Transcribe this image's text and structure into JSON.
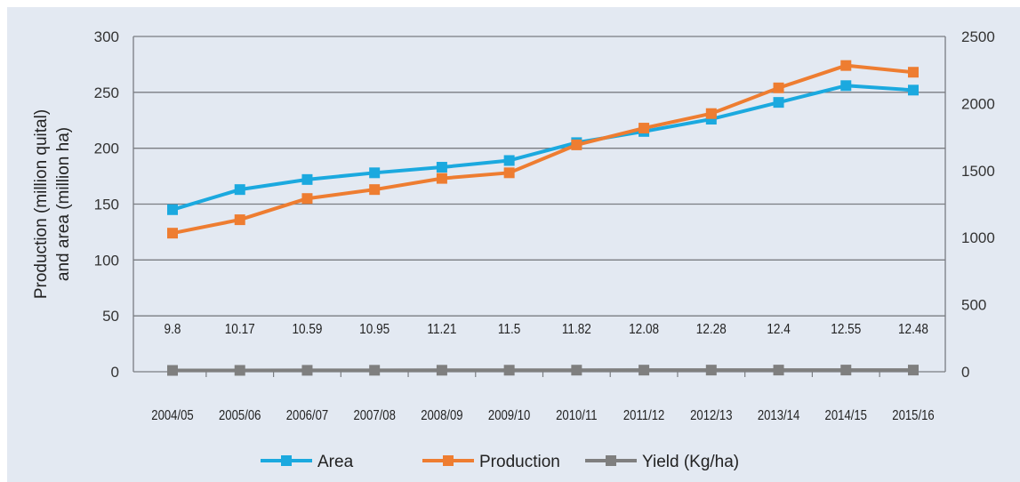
{
  "chart_data": {
    "type": "line",
    "title": "",
    "categories": [
      "2004/05",
      "2005/06",
      "2006/07",
      "2007/08",
      "2008/09",
      "2009/10",
      "2010/11",
      "2011/12",
      "2012/13",
      "2013/14",
      "2014/15",
      "2015/16"
    ],
    "ylabel_lines": [
      "Production (million quital)",
      "and area (million ha)"
    ],
    "ylim": [
      0,
      300
    ],
    "yticks": [
      0,
      50,
      100,
      150,
      200,
      250,
      300
    ],
    "y2lim": [
      0,
      2500
    ],
    "y2ticks": [
      0,
      500,
      1000,
      1500,
      2000,
      2500
    ],
    "grid": true,
    "legend_position": "bottom",
    "series": [
      {
        "name": "Area",
        "axis": "left",
        "color": "#1ba9df",
        "values": [
          145,
          163,
          172,
          178,
          183,
          189,
          205,
          215,
          226,
          241,
          256,
          252
        ]
      },
      {
        "name": "Production",
        "axis": "left",
        "color": "#ee7d31",
        "values": [
          124,
          136,
          155,
          163,
          173,
          178,
          203,
          218,
          231,
          254,
          274,
          268
        ]
      },
      {
        "name": "Yield (Kg/ha)",
        "axis": "right",
        "color": "#7f7f7f",
        "values": [
          9.8,
          10.17,
          10.59,
          10.95,
          11.21,
          11.5,
          11.82,
          12.08,
          12.28,
          12.4,
          12.55,
          12.48
        ],
        "data_labels": [
          "9.8",
          "10.17",
          "10.59",
          "10.95",
          "11.21",
          "11.5",
          "11.82",
          "12.08",
          "12.28",
          "12.4",
          "12.55",
          "12.48"
        ]
      }
    ]
  }
}
